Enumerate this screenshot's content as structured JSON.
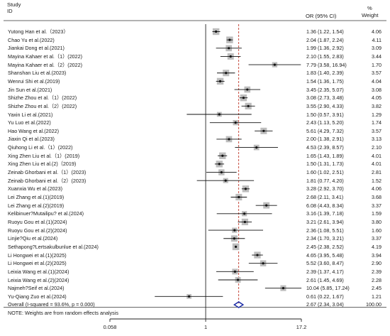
{
  "header": {
    "study": "Study",
    "id": "ID",
    "or_ci": "OR (95% CI)",
    "pct": "%",
    "weight": "Weight"
  },
  "note": "NOTE: Weights are from random effects analysis",
  "chart_data": {
    "type": "forest",
    "x_scale": "log",
    "xlim": [
      0.058,
      17.2
    ],
    "x_ticks": [
      {
        "value": 0.058,
        "label": "0.058"
      },
      {
        "value": 1,
        "label": "1"
      },
      {
        "value": 17.2,
        "label": "17.2"
      }
    ],
    "null_line": 1,
    "pooled_line": 2.67,
    "studies": [
      {
        "id": "Yutong Han et al.（2023）",
        "or": 1.36,
        "lo": 1.22,
        "hi": 1.54,
        "weight": 4.06,
        "label": "1.36 (1.22, 1.54)",
        "weight_label": "4.06"
      },
      {
        "id": "Chao Yu et al.(2022)",
        "or": 2.04,
        "lo": 1.87,
        "hi": 2.24,
        "weight": 4.11,
        "label": "2.04 (1.87, 2.24)",
        "weight_label": "4.11"
      },
      {
        "id": "Jiankai Dong et al.(2021)",
        "or": 1.99,
        "lo": 1.36,
        "hi": 2.92,
        "weight": 3.09,
        "label": "1.99 (1.36, 2.92)",
        "weight_label": "3.09"
      },
      {
        "id": "Mayina Kahaer et al.（1）(2022)",
        "or": 2.1,
        "lo": 1.55,
        "hi": 2.83,
        "weight": 3.44,
        "label": "2.10 (1.55, 2.83)",
        "weight_label": "3.44"
      },
      {
        "id": "Mayina Kahaer et al.（2）(2022)",
        "or": 7.79,
        "lo": 3.58,
        "hi": 16.94,
        "weight": 1.7,
        "label": "7.79 (3.58, 16.94)",
        "weight_label": "1.70"
      },
      {
        "id": "Shanshan Liu et al.(2023)",
        "or": 1.83,
        "lo": 1.4,
        "hi": 2.39,
        "weight": 3.57,
        "label": "1.83 (1.40, 2.39)",
        "weight_label": "3.57"
      },
      {
        "id": "Wenrui Shi et al.(2019)",
        "or": 1.54,
        "lo": 1.36,
        "hi": 1.75,
        "weight": 4.04,
        "label": "1.54 (1.36, 1.75)",
        "weight_label": "4.04"
      },
      {
        "id": "Jin Sun et al.(2021)",
        "or": 3.45,
        "lo": 2.35,
        "hi": 5.07,
        "weight": 3.08,
        "label": "3.45 (2.35, 5.07)",
        "weight_label": "3.08"
      },
      {
        "id": "Shizhe Zhou et al.（1）(2022)",
        "or": 3.08,
        "lo": 2.73,
        "hi": 3.48,
        "weight": 4.05,
        "label": "3.08 (2.73, 3.48)",
        "weight_label": "4.05"
      },
      {
        "id": "Shizhe Zhou et al.（2）(2022)",
        "or": 3.55,
        "lo": 2.9,
        "hi": 4.33,
        "weight": 3.82,
        "label": "3.55 (2.90, 4.33)",
        "weight_label": "3.82"
      },
      {
        "id": "Yaxin Li et al.(2021)",
        "or": 1.5,
        "lo": 0.57,
        "hi": 3.91,
        "weight": 1.29,
        "label": "1.50 (0.57, 3.91)",
        "weight_label": "1.29"
      },
      {
        "id": "Yu Luo et al.(2022)",
        "or": 2.43,
        "lo": 1.13,
        "hi": 5.2,
        "weight": 1.74,
        "label": "2.43 (1.13, 5.20)",
        "weight_label": "1.74"
      },
      {
        "id": "Hao Wang et al.(2022)",
        "or": 5.61,
        "lo": 4.29,
        "hi": 7.32,
        "weight": 3.57,
        "label": "5.61 (4.29, 7.32)",
        "weight_label": "3.57"
      },
      {
        "id": "Jiaxin Qi et al.(2023)",
        "or": 2.0,
        "lo": 1.38,
        "hi": 2.91,
        "weight": 3.13,
        "label": "2.00 (1.38, 2.91)",
        "weight_label": "3.13"
      },
      {
        "id": "Qiuhong Li et al.（1）(2022)",
        "or": 4.53,
        "lo": 2.39,
        "hi": 8.57,
        "weight": 2.1,
        "label": "4.53 (2.39, 8.57)",
        "weight_label": "2.10"
      },
      {
        "id": "Xing Zhen Liu et al.（1）(2019)",
        "or": 1.65,
        "lo": 1.43,
        "hi": 1.89,
        "weight": 4.01,
        "label": "1.65 (1.43, 1.89)",
        "weight_label": "4.01"
      },
      {
        "id": "Xing Zhen Liu et al.(2)（2019)",
        "or": 1.5,
        "lo": 1.31,
        "hi": 1.73,
        "weight": 4.01,
        "label": "1.50 (1.31, 1.73)",
        "weight_label": "4.01"
      },
      {
        "id": "Zeinab Ghorbani et al.（1）(2023)",
        "or": 1.6,
        "lo": 1.02,
        "hi": 2.51,
        "weight": 2.81,
        "label": "1.60 (1.02, 2.51)",
        "weight_label": "2.81"
      },
      {
        "id": "Zeinab Ghorbani et al.（2）(2023)",
        "or": 1.81,
        "lo": 0.77,
        "hi": 4.2,
        "weight": 1.52,
        "label": "1.81 (0.77, 4.20)",
        "weight_label": "1.52"
      },
      {
        "id": "Xuanxia Wu et al.(2023)",
        "or": 3.28,
        "lo": 2.92,
        "hi": 3.7,
        "weight": 4.06,
        "label": "3.28 (2.92, 3.70)",
        "weight_label": "4.06"
      },
      {
        "id": "Lei Zhang et al.(1)(2019)",
        "or": 2.68,
        "lo": 2.11,
        "hi": 3.41,
        "weight": 3.68,
        "label": "2.68 (2.11, 3.41)",
        "weight_label": "3.68"
      },
      {
        "id": "Lei Zhang et al.(2)(2019)",
        "or": 6.08,
        "lo": 4.43,
        "hi": 8.34,
        "weight": 3.37,
        "label": "6.08 (4.43, 8.34)",
        "weight_label": "3.37"
      },
      {
        "id": "Kelibinuer?Mutailipu? et al.(2024)",
        "or": 3.16,
        "lo": 1.39,
        "hi": 7.18,
        "weight": 1.59,
        "label": "3.16 (1.39, 7.18)",
        "weight_label": "1.59"
      },
      {
        "id": "Ruoyu Gou et al.(1)(2024)",
        "or": 3.21,
        "lo": 2.61,
        "hi": 3.94,
        "weight": 3.8,
        "label": "3.21 (2.61, 3.94)",
        "weight_label": "3.80"
      },
      {
        "id": "Ruoyu Gou et al.(2)(2024)",
        "or": 2.36,
        "lo": 1.08,
        "hi": 5.51,
        "weight": 1.6,
        "label": "2.36 (1.08, 5.51)",
        "weight_label": "1.60"
      },
      {
        "id": "Linjie?Qiu et al.(2024)",
        "or": 2.34,
        "lo": 1.7,
        "hi": 3.21,
        "weight": 3.37,
        "label": "2.34 (1.70, 3.21)",
        "weight_label": "3.37"
      },
      {
        "id": "Sethapong?Lertsakulbunlue et al.(2024)",
        "or": 2.45,
        "lo": 2.38,
        "hi": 2.52,
        "weight": 4.19,
        "label": "2.45 (2.38, 2.52)",
        "weight_label": "4.19"
      },
      {
        "id": "Li Hongwei et al.(1)(2025)",
        "or": 4.65,
        "lo": 3.95,
        "hi": 5.48,
        "weight": 3.94,
        "label": "4.65 (3.95, 5.48)",
        "weight_label": "3.94"
      },
      {
        "id": "Li Hongwei et al.(2)(2025)",
        "or": 5.52,
        "lo": 3.6,
        "hi": 8.47,
        "weight": 2.9,
        "label": "5.52 (3.60, 8.47)",
        "weight_label": "2.90"
      },
      {
        "id": "Leixia Wang et al.(1)(2024)",
        "or": 2.39,
        "lo": 1.37,
        "hi": 4.17,
        "weight": 2.39,
        "label": "2.39 (1.37, 4.17)",
        "weight_label": "2.39"
      },
      {
        "id": "Leixia Wang et al.(2)(2024)",
        "or": 2.61,
        "lo": 1.45,
        "hi": 4.69,
        "weight": 2.28,
        "label": "2.61 (1.45, 4.69)",
        "weight_label": "2.28"
      },
      {
        "id": "Najmeh?Seif et al.(2024)",
        "or": 10.04,
        "lo": 5.85,
        "hi": 17.24,
        "weight": 2.45,
        "label": "10.04 (5.85, 17.24)",
        "weight_label": "2.45"
      },
      {
        "id": "Yu-Qiang Zuo et al.(2024)",
        "or": 0.61,
        "lo": 0.22,
        "hi": 1.67,
        "weight": 1.21,
        "label": "0.61 (0.22, 1.67)",
        "weight_label": "1.21"
      }
    ],
    "overall": {
      "id": "Overall  (I-squared = 93.6%, p = 0.000)",
      "or": 2.67,
      "lo": 2.34,
      "hi": 3.04,
      "label": "2.67 (2.34, 3.04)",
      "weight_label": "100.00"
    }
  }
}
